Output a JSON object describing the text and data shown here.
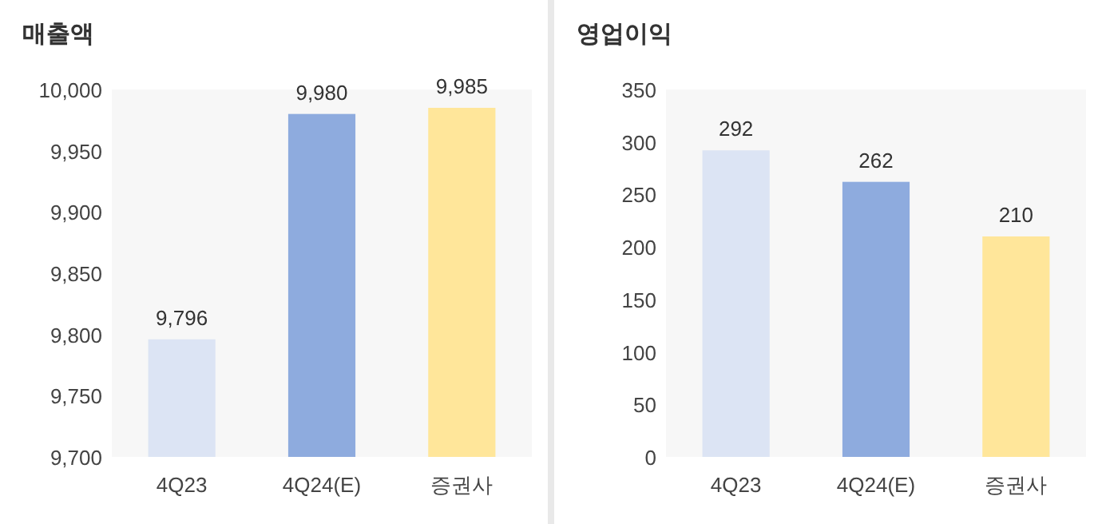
{
  "chart_data": [
    {
      "type": "bar",
      "title": "매출액",
      "categories": [
        "4Q23",
        "4Q24(E)",
        "증권사"
      ],
      "values": [
        9796,
        9980,
        9985
      ],
      "colors": [
        "#dce4f4",
        "#8eabde",
        "#ffe69a"
      ],
      "value_labels": [
        "9,796",
        "9,980",
        "9,985"
      ],
      "ylim": [
        9700,
        10000
      ],
      "yticks": [
        {
          "value": 9700,
          "label": "9,700"
        },
        {
          "value": 9750,
          "label": "9,750"
        },
        {
          "value": 9800,
          "label": "9,800"
        },
        {
          "value": 9850,
          "label": "9,850"
        },
        {
          "value": 9900,
          "label": "9,900"
        },
        {
          "value": 9950,
          "label": "9,950"
        },
        {
          "value": 10000,
          "label": "10,000"
        }
      ]
    },
    {
      "type": "bar",
      "title": "영업이익",
      "categories": [
        "4Q23",
        "4Q24(E)",
        "증권사"
      ],
      "values": [
        292,
        262,
        210
      ],
      "colors": [
        "#dce4f4",
        "#8eabde",
        "#ffe69a"
      ],
      "value_labels": [
        "292",
        "262",
        "210"
      ],
      "ylim": [
        0,
        350
      ],
      "yticks": [
        0,
        50,
        100,
        150,
        200,
        250,
        300,
        350
      ]
    }
  ]
}
